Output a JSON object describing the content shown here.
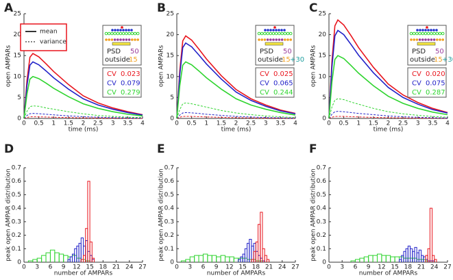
{
  "chart_data": [
    {
      "type": "line",
      "panel_label": "A",
      "xlabel": "time (ms)",
      "ylabel": "open AMPARs",
      "xlim": [
        0,
        4
      ],
      "ylim": [
        0,
        25
      ],
      "xticks": [
        0,
        0.5,
        1,
        1.5,
        2,
        2.5,
        3,
        3.5,
        4
      ],
      "yticks": [
        0,
        5,
        10,
        15,
        20,
        25
      ],
      "x": [
        0,
        0.1,
        0.2,
        0.3,
        0.5,
        0.75,
        1,
        1.5,
        2,
        2.5,
        3,
        3.5,
        4
      ],
      "series": [
        {
          "color": "#e8141c",
          "dash": false,
          "values": [
            0,
            9,
            14.6,
            15.5,
            14.7,
            13,
            11.2,
            8.1,
            5.4,
            3.7,
            2.5,
            1.6,
            0.9
          ]
        },
        {
          "color": "#2222c8",
          "dash": false,
          "values": [
            0,
            7.8,
            12.7,
            13.5,
            12.8,
            11.3,
            9.7,
            7,
            4.7,
            3.2,
            2.2,
            1.4,
            0.8
          ]
        },
        {
          "color": "#2ed42e",
          "dash": false,
          "values": [
            0,
            5.8,
            9.4,
            10,
            9.5,
            8.4,
            7.2,
            5.2,
            3.5,
            2.4,
            1.6,
            1,
            0.6
          ]
        },
        {
          "color": "#e8141c",
          "dash": true,
          "values": [
            0,
            0.23,
            0.38,
            0.4,
            0.38,
            0.34,
            0.29,
            0.21,
            0.14,
            0.1,
            0.06,
            0.04,
            0.02
          ]
        },
        {
          "color": "#2222c8",
          "dash": true,
          "values": [
            0,
            0.7,
            1.13,
            1.2,
            1.14,
            1,
            0.86,
            0.62,
            0.42,
            0.29,
            0.19,
            0.12,
            0.07
          ]
        },
        {
          "color": "#2ed42e",
          "dash": true,
          "values": [
            0,
            1.7,
            2.8,
            3,
            2.9,
            2.5,
            2.2,
            1.6,
            1.1,
            0.7,
            0.5,
            0.3,
            0.2
          ]
        }
      ],
      "legend": [
        {
          "label": "mean",
          "dash": false
        },
        {
          "label": "variance",
          "dash": true
        }
      ],
      "inset": {
        "psd": "PSD",
        "psd_count": "50",
        "outside": "outside",
        "outside_count": "15",
        "cv": [
          {
            "label": "CV",
            "value": "0.023"
          },
          {
            "label": "CV",
            "value": "0.079"
          },
          {
            "label": "CV",
            "value": "0.279"
          }
        ]
      }
    },
    {
      "type": "line",
      "panel_label": "B",
      "xlabel": "time (ms)",
      "ylabel": "open AMPARs",
      "xlim": [
        0,
        4
      ],
      "ylim": [
        0,
        25
      ],
      "xticks": [
        0,
        0.5,
        1,
        1.5,
        2,
        2.5,
        3,
        3.5,
        4
      ],
      "yticks": [
        0,
        5,
        10,
        15,
        20,
        25
      ],
      "x": [
        0,
        0.1,
        0.2,
        0.3,
        0.5,
        0.75,
        1,
        1.5,
        2,
        2.5,
        3,
        3.5,
        4
      ],
      "series": [
        {
          "color": "#e8141c",
          "dash": false,
          "values": [
            0,
            11.4,
            18.5,
            19.7,
            18.7,
            16.5,
            14.2,
            10.2,
            6.9,
            4.7,
            3.2,
            2,
            1.2
          ]
        },
        {
          "color": "#2222c8",
          "dash": false,
          "values": [
            0,
            10.4,
            16.9,
            18,
            17.1,
            15.1,
            13,
            9.4,
            6.3,
            4.3,
            2.9,
            1.8,
            1.1
          ]
        },
        {
          "color": "#2ed42e",
          "dash": false,
          "values": [
            0,
            7.8,
            12.7,
            13.5,
            12.8,
            11.3,
            9.7,
            7,
            4.7,
            3.2,
            2.2,
            1.4,
            0.8
          ]
        },
        {
          "color": "#e8141c",
          "dash": true,
          "values": [
            0,
            0.29,
            0.47,
            0.5,
            0.48,
            0.42,
            0.36,
            0.26,
            0.18,
            0.12,
            0.08,
            0.05,
            0.03
          ]
        },
        {
          "color": "#2222c8",
          "dash": true,
          "values": [
            0,
            0.8,
            1.3,
            1.4,
            1.33,
            1.18,
            1,
            0.73,
            0.49,
            0.34,
            0.22,
            0.14,
            0.08
          ]
        },
        {
          "color": "#2ed42e",
          "dash": true,
          "values": [
            0,
            2.1,
            3.5,
            3.7,
            3.5,
            3.1,
            2.7,
            1.9,
            1.3,
            0.9,
            0.6,
            0.4,
            0.2
          ]
        }
      ],
      "inset": {
        "psd": "PSD",
        "psd_count": "50",
        "outside": "outside",
        "outside_count": "15",
        "outside_extra": "+30",
        "cv": [
          {
            "label": "CV",
            "value": "0.025"
          },
          {
            "label": "CV",
            "value": "0.065"
          },
          {
            "label": "CV",
            "value": "0.244"
          }
        ]
      }
    },
    {
      "type": "line",
      "panel_label": "C",
      "xlabel": "time (ms)",
      "ylabel": "open AMPARs",
      "xlim": [
        0,
        4
      ],
      "ylim": [
        0,
        25
      ],
      "xticks": [
        0,
        0.5,
        1,
        1.5,
        2,
        2.5,
        3,
        3.5,
        4
      ],
      "yticks": [
        0,
        5,
        10,
        15,
        20,
        25
      ],
      "x": [
        0,
        0.1,
        0.2,
        0.3,
        0.5,
        0.75,
        1,
        1.5,
        2,
        2.5,
        3,
        3.5,
        4
      ],
      "series": [
        {
          "color": "#e8141c",
          "dash": false,
          "values": [
            0,
            13.6,
            22.1,
            23.5,
            22.3,
            19.7,
            16.9,
            12.2,
            8.2,
            5.6,
            3.8,
            2.4,
            1.4
          ]
        },
        {
          "color": "#2222c8",
          "dash": false,
          "values": [
            0,
            12.2,
            19.7,
            21,
            20,
            17.6,
            15.1,
            10.9,
            7.4,
            5,
            3.4,
            2.1,
            1.3
          ]
        },
        {
          "color": "#2ed42e",
          "dash": false,
          "values": [
            0,
            8.7,
            14.1,
            15,
            14.3,
            12.6,
            10.8,
            7.8,
            5.3,
            3.6,
            2.4,
            1.5,
            0.9
          ]
        },
        {
          "color": "#e8141c",
          "dash": true,
          "values": [
            0,
            0.29,
            0.47,
            0.5,
            0.48,
            0.42,
            0.36,
            0.26,
            0.18,
            0.12,
            0.08,
            0.05,
            0.03
          ]
        },
        {
          "color": "#2222c8",
          "dash": true,
          "values": [
            0,
            1,
            1.6,
            1.7,
            1.6,
            1.4,
            1.2,
            0.9,
            0.6,
            0.4,
            0.27,
            0.17,
            0.1
          ]
        },
        {
          "color": "#2ed42e",
          "dash": true,
          "values": [
            0,
            2.7,
            4.4,
            4.7,
            4.5,
            3.9,
            3.4,
            2.4,
            1.6,
            1.1,
            0.75,
            0.47,
            0.28
          ]
        }
      ],
      "inset": {
        "psd": "PSD",
        "psd_count": "50",
        "outside": "outside",
        "outside_count": "15",
        "outside_extra": "+30",
        "cv": [
          {
            "label": "CV",
            "value": "0.020"
          },
          {
            "label": "CV",
            "value": "0.075"
          },
          {
            "label": "CV",
            "value": "0.287"
          }
        ]
      }
    },
    {
      "type": "histogram",
      "panel_label": "D",
      "xlabel": "number of AMPARs",
      "ylabel": "peak open AMPAR distribution",
      "xlim": [
        0,
        27
      ],
      "ylim": [
        0,
        0.7
      ],
      "xticks": [
        0,
        3,
        6,
        9,
        12,
        15,
        18,
        21,
        24,
        27
      ],
      "yticks": [
        0,
        0.1,
        0.2,
        0.3,
        0.4,
        0.5,
        0.6,
        0.7
      ],
      "series": [
        {
          "color": "#2ed42e",
          "bins": [
            1,
            2,
            3,
            4,
            5,
            6,
            7,
            8,
            9,
            10,
            11,
            12,
            13,
            14,
            15
          ],
          "values": [
            0.01,
            0.02,
            0.03,
            0.05,
            0.07,
            0.09,
            0.07,
            0.06,
            0.05,
            0.04,
            0.05,
            0.03,
            0.02,
            0.01
          ]
        },
        {
          "color": "#2222c8",
          "bins": [
            10,
            10.5,
            11,
            11.5,
            12,
            12.5,
            13,
            13.5,
            14,
            14.5,
            15,
            15.5,
            16
          ],
          "values": [
            0.02,
            0.04,
            0.06,
            0.1,
            0.12,
            0.14,
            0.18,
            0.12,
            0.16,
            0.08,
            0.05,
            0.02
          ]
        },
        {
          "color": "#e8141c",
          "bins": [
            13,
            13.5,
            14,
            14.5,
            15,
            15.5,
            16
          ],
          "values": [
            0.02,
            0.05,
            0.25,
            0.6,
            0.15,
            0.03
          ]
        }
      ]
    },
    {
      "type": "histogram",
      "panel_label": "E",
      "xlabel": "number of AMPARs",
      "ylabel": "peak open AMPAR distribution",
      "xlim": [
        0,
        27
      ],
      "ylim": [
        0,
        0.7
      ],
      "xticks": [
        0,
        3,
        6,
        9,
        12,
        15,
        18,
        21,
        24,
        27
      ],
      "yticks": [
        0,
        0.1,
        0.2,
        0.3,
        0.4,
        0.5,
        0.6,
        0.7
      ],
      "series": [
        {
          "color": "#2ed42e",
          "bins": [
            1,
            2,
            3,
            4,
            5,
            6,
            7,
            8,
            9,
            10,
            11,
            12,
            13,
            14,
            15,
            16,
            17,
            18,
            19,
            20
          ],
          "values": [
            0.01,
            0.02,
            0.04,
            0.05,
            0.05,
            0.06,
            0.05,
            0.05,
            0.04,
            0.05,
            0.04,
            0.04,
            0.03,
            0.03,
            0.03,
            0.02,
            0.02,
            0.01,
            0.01
          ]
        },
        {
          "color": "#2222c8",
          "bins": [
            14,
            14.5,
            15,
            15.5,
            16,
            16.5,
            17,
            17.5,
            18,
            18.5,
            19,
            19.5,
            20
          ],
          "values": [
            0.02,
            0.04,
            0.06,
            0.1,
            0.14,
            0.17,
            0.12,
            0.14,
            0.08,
            0.05,
            0.03,
            0.01
          ]
        },
        {
          "color": "#e8141c",
          "bins": [
            17,
            17.5,
            18,
            18.5,
            19,
            19.5,
            20,
            20.5,
            21
          ],
          "values": [
            0.02,
            0.08,
            0.15,
            0.28,
            0.37,
            0.1,
            0.05,
            0.02
          ]
        }
      ]
    },
    {
      "type": "histogram",
      "panel_label": "F",
      "xlabel": "number of AMPARs",
      "ylabel": "peak open AMPAR distribution",
      "xlim": [
        0,
        27
      ],
      "ylim": [
        0,
        0.7
      ],
      "xticks": [
        0,
        3,
        6,
        9,
        12,
        15,
        18,
        21,
        24,
        27
      ],
      "yticks": [
        0,
        0.1,
        0.2,
        0.3,
        0.4,
        0.5,
        0.6,
        0.7
      ],
      "series": [
        {
          "color": "#2ed42e",
          "bins": [
            5,
            6,
            7,
            8,
            9,
            10,
            11,
            12,
            13,
            14,
            15,
            16,
            17,
            18,
            19,
            20,
            21,
            22,
            23,
            24
          ],
          "values": [
            0.01,
            0.02,
            0.03,
            0.04,
            0.05,
            0.05,
            0.06,
            0.05,
            0.05,
            0.04,
            0.04,
            0.04,
            0.03,
            0.03,
            0.03,
            0.02,
            0.02,
            0.01,
            0.01
          ]
        },
        {
          "color": "#2222c8",
          "bins": [
            16,
            16.5,
            17,
            17.5,
            18,
            18.5,
            19,
            19.5,
            20,
            20.5,
            21,
            21.5,
            22,
            22.5,
            23,
            23.5,
            24
          ],
          "values": [
            0.02,
            0.05,
            0.08,
            0.1,
            0.12,
            0.1,
            0.08,
            0.11,
            0.07,
            0.09,
            0.05,
            0.04,
            0.02,
            0.01,
            0.01,
            0.01
          ]
        },
        {
          "color": "#e8141c",
          "bins": [
            22,
            22.5,
            23,
            23.5,
            24,
            24.5
          ],
          "values": [
            0.05,
            0.1,
            0.4,
            0.05,
            0.02
          ]
        }
      ]
    }
  ]
}
